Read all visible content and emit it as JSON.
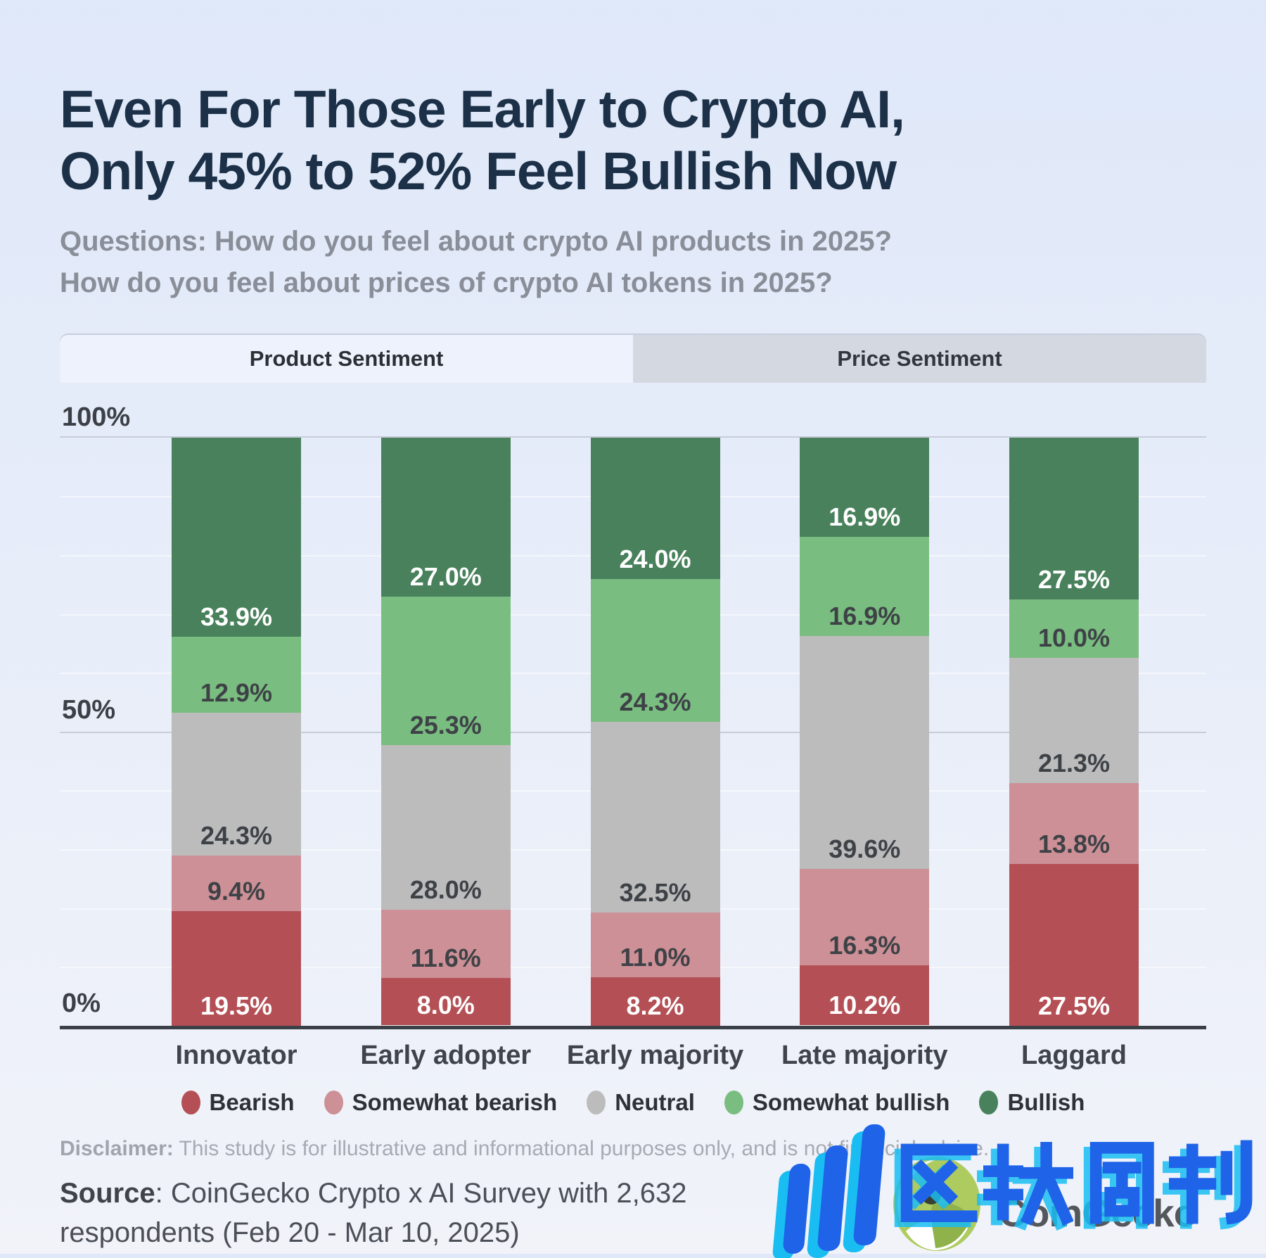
{
  "header": {
    "title_lines": [
      "Even For Those Early to Crypto AI,",
      "Only 45% to 52% Feel Bullish Now"
    ],
    "subtitle_lines": [
      "Questions: How do you feel about crypto AI products in 2025?",
      "How do you feel about prices of crypto AI tokens in 2025?"
    ]
  },
  "tabs": [
    {
      "label": "Product Sentiment",
      "active": true
    },
    {
      "label": "Price Sentiment",
      "active": false
    }
  ],
  "chart_data": {
    "type": "bar",
    "variant": "stacked-percent-column",
    "title": "Even For Those Early to Crypto AI, Only 45% to 52% Feel Bullish Now",
    "categories": [
      "Innovator",
      "Early adopter",
      "Early majority",
      "Late majority",
      "Laggard"
    ],
    "series": [
      {
        "name": "Bearish",
        "color": "#b45055",
        "label_color": "#ffffff",
        "values": [
          19.5,
          8.0,
          8.2,
          10.2,
          27.5
        ]
      },
      {
        "name": "Somewhat bearish",
        "color": "#cc9096",
        "label_color": "#3e4247",
        "values": [
          9.4,
          11.6,
          11.0,
          16.3,
          13.8
        ]
      },
      {
        "name": "Neutral",
        "color": "#bcbcbc",
        "label_color": "#3e4247",
        "values": [
          24.3,
          28.0,
          32.5,
          39.6,
          21.3
        ]
      },
      {
        "name": "Somewhat bullish",
        "color": "#7abd80",
        "label_color": "#3e4247",
        "values": [
          12.9,
          25.3,
          24.3,
          16.9,
          10.0
        ]
      },
      {
        "name": "Bullish",
        "color": "#48815b",
        "label_color": "#ffffff",
        "values": [
          33.9,
          27.0,
          24.0,
          16.9,
          27.5
        ]
      }
    ],
    "stack_order": "bottom_to_top",
    "value_suffix": "%",
    "ylim": [
      0,
      100
    ],
    "yticks": [
      "100%",
      "50%",
      "0%"
    ],
    "grid": "horizontal, major at 50% and 100%, faint minors every 10%",
    "legend_position": "bottom"
  },
  "disclaimer": {
    "label": "Disclaimer:",
    "text": " This study is for illustrative and informational purposes only, and is not financial advice."
  },
  "source": {
    "label": "Source",
    "text": ": CoinGecko Crypto x AI Survey with 2,632 respondents (Feb 20 - Mar 10, 2025)"
  },
  "branding": {
    "wordmark": "CoinGecko",
    "watermark_text": "区块周刊",
    "watermark_color": "#1f64e8",
    "watermark_accent": "#19bdf2"
  }
}
